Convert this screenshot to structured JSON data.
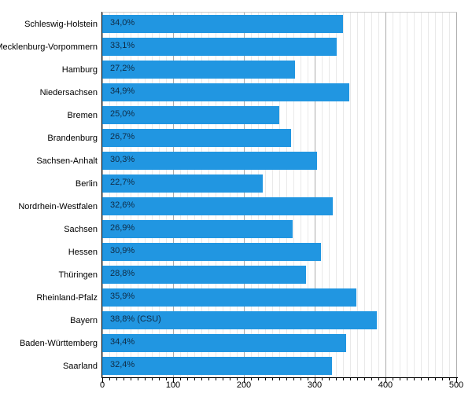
{
  "chart_data": {
    "type": "bar",
    "orientation": "horizontal",
    "title": "",
    "xlabel": "",
    "ylabel": "",
    "categories": [
      "Schleswig-Holstein",
      "Mecklenburg-Vorpommern",
      "Hamburg",
      "Niedersachsen",
      "Bremen",
      "Brandenburg",
      "Sachsen-Anhalt",
      "Berlin",
      "Nordrhein-Westfalen",
      "Sachsen",
      "Hessen",
      "Thüringen",
      "Rheinland-Pfalz",
      "Bayern",
      "Baden-Württemberg",
      "Saarland"
    ],
    "values_percent": [
      34.0,
      33.1,
      27.2,
      34.9,
      25.0,
      26.7,
      30.3,
      22.7,
      32.6,
      26.9,
      30.9,
      28.8,
      35.9,
      38.8,
      34.4,
      32.4
    ],
    "bar_labels": [
      "34,0%",
      "33,1%",
      "27,2%",
      "34,9%",
      "25,0%",
      "26,7%",
      "30,3%",
      "22,7%",
      "32,6%",
      "26,9%",
      "30,9%",
      "28,8%",
      "35,9%",
      "38,8% (CSU)",
      "34,4%",
      "32,4%"
    ],
    "axis_units_per_percent": 10,
    "xlim": [
      0,
      500
    ],
    "x_tick_labels": [
      "0",
      "100",
      "200",
      "300",
      "400",
      "500"
    ],
    "x_minor_tick_step": 10,
    "grid": {
      "vertical_minor_every": 10,
      "vertical_major_every": 100,
      "horizontal": false
    },
    "legend": null,
    "colors": {
      "bar": "#2196E1",
      "bar_label_text": "#0F2B45",
      "category_label_text": "#000000",
      "major_grid": "#ABABAB",
      "minor_grid": "#E9E9E9",
      "axis": "#000000",
      "background": "#FFFFFF"
    }
  }
}
